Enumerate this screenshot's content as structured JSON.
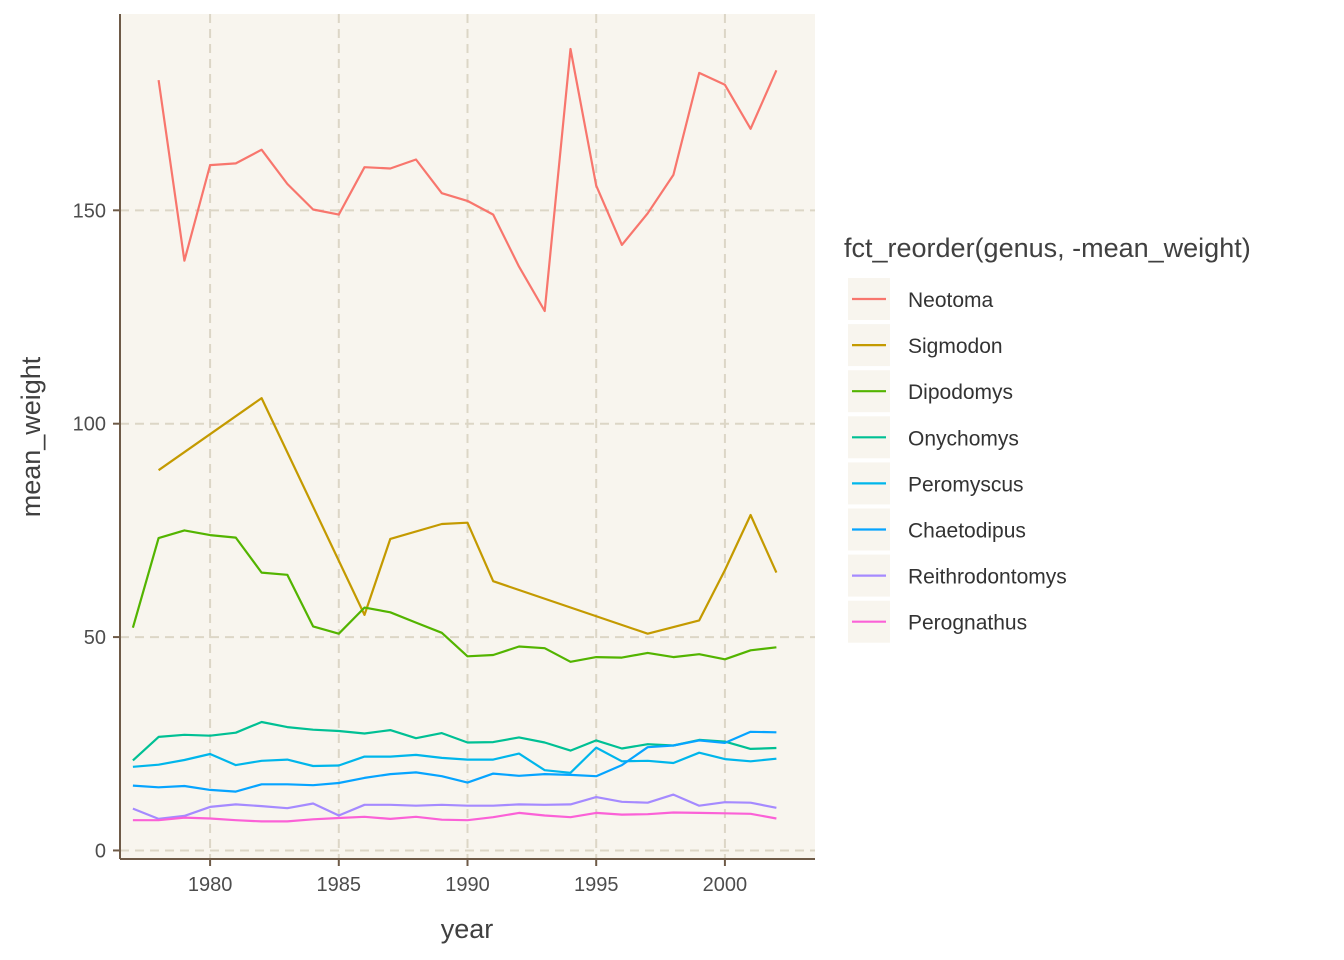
{
  "chart_data": {
    "type": "line",
    "xlabel": "year",
    "ylabel": "mean_weight",
    "xlim": [
      1976.5,
      2003.5
    ],
    "ylim": [
      -2,
      196
    ],
    "x_ticks": [
      1980,
      1985,
      1990,
      1995,
      2000
    ],
    "y_ticks": [
      0,
      50,
      100,
      150
    ],
    "x_tick_labels": [
      "1980",
      "1985",
      "1990",
      "1995",
      "2000"
    ],
    "y_tick_labels": [
      "0",
      "50",
      "100",
      "150"
    ],
    "grid": true,
    "legend_position": "right",
    "legend_title": "fct_reorder(genus, -mean_weight)",
    "series": [
      {
        "name": "Neotoma",
        "color": "#F8766D",
        "x": [
          1978,
          1979,
          1980,
          1981,
          1982,
          1983,
          1984,
          1985,
          1986,
          1987,
          1988,
          1989,
          1990,
          1991,
          1992,
          1993,
          1994,
          1995,
          1996,
          1997,
          1998,
          1999,
          2000,
          2001,
          2002
        ],
        "y": [
          180.5,
          138.2,
          160.6,
          161,
          164.2,
          156.2,
          150.2,
          149,
          160.1,
          159.8,
          161.9,
          154,
          152.2,
          149,
          136.8,
          126.4,
          187.8,
          155.8,
          141.9,
          149.3,
          158.3,
          182.2,
          179.4,
          169.1,
          182.8
        ]
      },
      {
        "name": "Sigmodon",
        "color": "#C49A00",
        "x": [
          1978,
          1982,
          1986,
          1987,
          1989,
          1990,
          1991,
          1997,
          1999,
          2000,
          2001,
          2002
        ],
        "y": [
          89.1,
          106,
          55.2,
          73,
          76.5,
          76.8,
          63.1,
          50.8,
          53.9,
          65.7,
          78.6,
          65.1
        ]
      },
      {
        "name": "Dipodomys",
        "color": "#53B400",
        "x": [
          1977,
          1978,
          1979,
          1980,
          1981,
          1982,
          1983,
          1984,
          1985,
          1986,
          1987,
          1988,
          1989,
          1990,
          1991,
          1992,
          1993,
          1994,
          1995,
          1996,
          1997,
          1998,
          1999,
          2000,
          2001,
          2002
        ],
        "y": [
          52.2,
          73.2,
          75,
          73.9,
          73.3,
          65.1,
          64.6,
          52.5,
          50.8,
          56.9,
          55.8,
          53.4,
          51,
          45.5,
          45.8,
          47.8,
          47.4,
          44.2,
          45.3,
          45.2,
          46.3,
          45.3,
          46,
          44.8,
          46.9,
          47.6
        ]
      },
      {
        "name": "Onychomys",
        "color": "#00C094",
        "x": [
          1977,
          1978,
          1979,
          1980,
          1981,
          1982,
          1983,
          1984,
          1985,
          1986,
          1987,
          1988,
          1989,
          1990,
          1991,
          1992,
          1993,
          1994,
          1995,
          1996,
          1997,
          1998,
          1999,
          2000,
          2001,
          2002
        ],
        "y": [
          21.1,
          26.6,
          27.1,
          26.9,
          27.6,
          30.1,
          28.9,
          28.3,
          28,
          27.4,
          28.2,
          26.3,
          27.5,
          25.3,
          25.4,
          26.5,
          25.3,
          23.4,
          25.8,
          23.9,
          24.9,
          24.6,
          25.9,
          25.5,
          23.8,
          24
        ]
      },
      {
        "name": "Peromyscus",
        "color": "#00B6EB",
        "x": [
          1977,
          1978,
          1979,
          1980,
          1981,
          1982,
          1983,
          1984,
          1985,
          1986,
          1987,
          1988,
          1989,
          1990,
          1991,
          1992,
          1993,
          1994,
          1995,
          1996,
          1997,
          1998,
          1999,
          2000,
          2001,
          2002
        ],
        "y": [
          19.6,
          20.1,
          21.2,
          22.6,
          20,
          21,
          21.3,
          19.8,
          19.9,
          22,
          22,
          22.4,
          21.7,
          21.3,
          21.3,
          22.7,
          18.8,
          18.2,
          24.1,
          20.9,
          21,
          20.5,
          22.9,
          21.4,
          20.9,
          21.5
        ]
      },
      {
        "name": "Chaetodipus",
        "color": "#06A4FF",
        "x": [
          1977,
          1978,
          1979,
          1980,
          1981,
          1982,
          1983,
          1984,
          1985,
          1986,
          1987,
          1988,
          1989,
          1990,
          1991,
          1992,
          1993,
          1994,
          1995,
          1996,
          1997,
          1998,
          1999,
          2000,
          2001,
          2002
        ],
        "y": [
          15.2,
          14.8,
          15.1,
          14.2,
          13.8,
          15.5,
          15.5,
          15.3,
          15.8,
          17,
          17.9,
          18.3,
          17.4,
          15.9,
          18,
          17.5,
          17.9,
          17.7,
          17.4,
          20,
          24.2,
          24.6,
          25.8,
          25.2,
          27.8,
          27.7
        ]
      },
      {
        "name": "Reithrodontomys",
        "color": "#A58AFF",
        "x": [
          1977,
          1978,
          1979,
          1980,
          1981,
          1982,
          1983,
          1984,
          1985,
          1986,
          1987,
          1988,
          1989,
          1990,
          1991,
          1992,
          1993,
          1994,
          1995,
          1996,
          1997,
          1998,
          1999,
          2000,
          2001,
          2002
        ],
        "y": [
          9.8,
          7.4,
          8.1,
          10.2,
          10.8,
          10.4,
          9.9,
          11,
          8.2,
          10.7,
          10.7,
          10.5,
          10.7,
          10.5,
          10.5,
          10.8,
          10.7,
          10.8,
          12.5,
          11.4,
          11.2,
          13.1,
          10.5,
          11.3,
          11.2,
          10
        ]
      },
      {
        "name": "Perognathus",
        "color": "#FB61D7",
        "x": [
          1977,
          1978,
          1979,
          1980,
          1981,
          1982,
          1983,
          1984,
          1985,
          1986,
          1987,
          1988,
          1989,
          1990,
          1991,
          1992,
          1993,
          1994,
          1995,
          1996,
          1997,
          1998,
          1999,
          2000,
          2001,
          2002
        ],
        "y": [
          7.1,
          7.1,
          7.7,
          7.5,
          7.1,
          6.8,
          6.8,
          7.3,
          7.6,
          7.9,
          7.4,
          7.9,
          7.2,
          7.1,
          7.8,
          8.8,
          8.2,
          7.8,
          8.8,
          8.4,
          8.5,
          8.9,
          8.8,
          8.7,
          8.6,
          7.5
        ]
      }
    ]
  }
}
